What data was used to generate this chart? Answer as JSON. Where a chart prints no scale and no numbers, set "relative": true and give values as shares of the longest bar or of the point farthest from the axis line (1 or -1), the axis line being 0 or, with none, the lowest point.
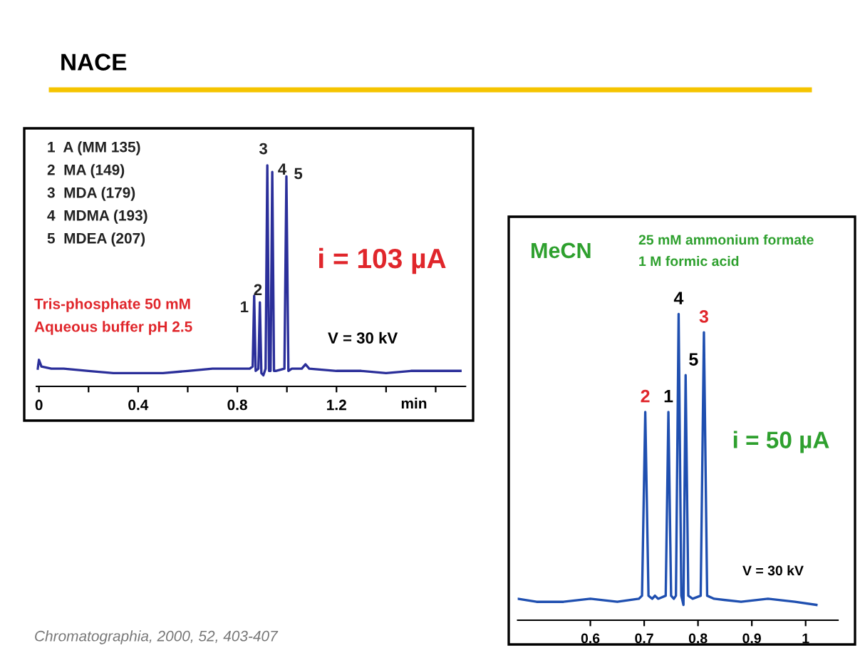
{
  "chart_data": [
    {
      "type": "line",
      "title": "NACE",
      "relative": true,
      "xlabel": "min",
      "x": [
        -0.005,
        0,
        0.01,
        0.05,
        0.1,
        0.2,
        0.3,
        0.4,
        0.5,
        0.6,
        0.7,
        0.8,
        0.85,
        0.862,
        0.868,
        0.874,
        0.885,
        0.891,
        0.897,
        0.905,
        0.914,
        0.921,
        0.928,
        0.934,
        0.941,
        0.948,
        0.955,
        0.99,
        0.998,
        1.006,
        1.02,
        1.06,
        1.075,
        1.09,
        1.2,
        1.3,
        1.4,
        1.5,
        1.6,
        1.7
      ],
      "series": [
        {
          "color": "#2b2f9a",
          "values": [
            0.08,
            0.12,
            0.09,
            0.08,
            0.08,
            0.07,
            0.06,
            0.06,
            0.06,
            0.07,
            0.08,
            0.08,
            0.08,
            0.09,
            0.41,
            0.07,
            0.08,
            0.38,
            0.06,
            0.05,
            0.08,
            1.0,
            0.07,
            0.07,
            0.97,
            0.07,
            0.07,
            0.08,
            0.95,
            0.07,
            0.08,
            0.08,
            0.1,
            0.08,
            0.07,
            0.07,
            0.06,
            0.07,
            0.07,
            0.07
          ]
        }
      ],
      "xlim": [
        -0.01,
        1.72
      ],
      "xticks": [
        0,
        {
          "value": 0.2,
          "label": null
        },
        0.4,
        {
          "value": 0.6,
          "label": null
        },
        0.8,
        {
          "value": 1.0,
          "label": null
        },
        1.2,
        {
          "value": 1.4,
          "label": null
        },
        {
          "value": 1.6,
          "label": null
        }
      ],
      "tick_labels": "x",
      "grid": false,
      "marker": "none",
      "line_style": "solid",
      "annotations": [
        "1  A (MM 135)",
        "2  MA (149)",
        "3  MDA (179)",
        "4  MDMA (193)",
        "5  MDEA (207)",
        "Tris-phosphate 50 mM",
        "Aqueous buffer pH 2.5",
        "i = 103 µA",
        "V = 30 kV",
        "Chromatographia, 2000, 52, 403-407",
        {
          "text": "1",
          "x": 0.868,
          "y": 0.41
        },
        {
          "text": "2",
          "x": 0.891,
          "y": 0.38
        },
        {
          "text": "3",
          "x": 0.921,
          "y": 1.0
        },
        {
          "text": "4",
          "x": 0.941,
          "y": 0.97
        },
        {
          "text": "5",
          "x": 0.998,
          "y": 0.95
        }
      ]
    },
    {
      "type": "line",
      "relative": true,
      "x": [
        0.465,
        0.5,
        0.55,
        0.6,
        0.65,
        0.69,
        0.696,
        0.702,
        0.708,
        0.715,
        0.72,
        0.726,
        0.74,
        0.745,
        0.75,
        0.755,
        0.759,
        0.764,
        0.769,
        0.773,
        0.777,
        0.782,
        0.79,
        0.805,
        0.811,
        0.817,
        0.83,
        0.88,
        0.93,
        0.98,
        1.02
      ],
      "series": [
        {
          "color": "#1f4fb0",
          "values": [
            0.07,
            0.06,
            0.06,
            0.07,
            0.06,
            0.07,
            0.08,
            0.68,
            0.08,
            0.07,
            0.08,
            0.07,
            0.08,
            0.68,
            0.08,
            0.07,
            0.08,
            1.0,
            0.08,
            0.05,
            0.8,
            0.08,
            0.07,
            0.08,
            0.94,
            0.08,
            0.07,
            0.06,
            0.07,
            0.06,
            0.05
          ]
        }
      ],
      "xlim": [
        0.465,
        1.06
      ],
      "xticks": [
        0.6,
        0.7,
        0.8,
        0.9,
        1
      ],
      "tick_labels": "x",
      "grid": false,
      "marker": "none",
      "line_style": "solid",
      "annotations": [
        "MeCN",
        "25 mM ammonium formate",
        "1 M formic acid",
        "i = 50 µA",
        "V = 30 kV",
        {
          "text": "2",
          "x": 0.702,
          "y": 0.68
        },
        {
          "text": "1",
          "x": 0.745,
          "y": 0.68
        },
        {
          "text": "4",
          "x": 0.764,
          "y": 1.0
        },
        {
          "text": "5",
          "x": 0.777,
          "y": 0.8
        },
        {
          "text": "3",
          "x": 0.811,
          "y": 0.94
        }
      ]
    }
  ]
}
